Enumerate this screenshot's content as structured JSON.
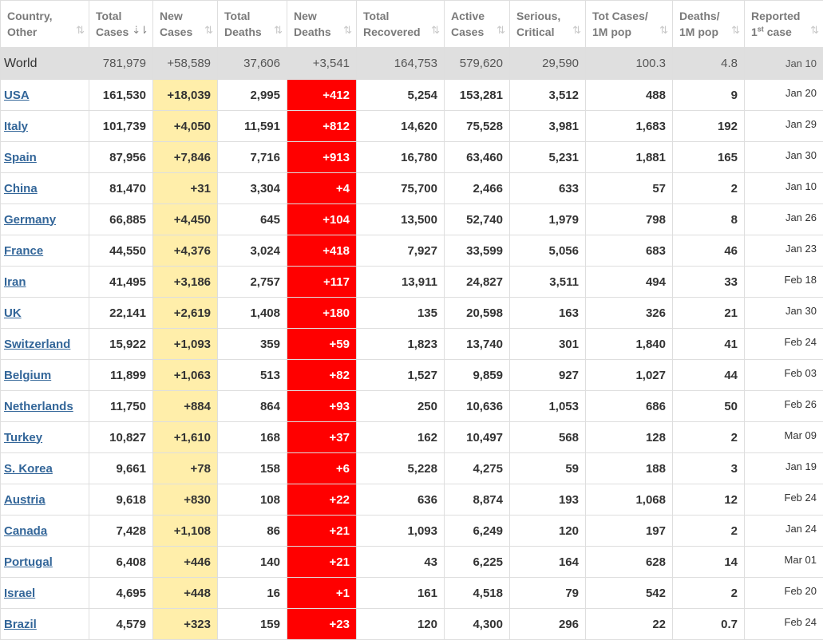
{
  "headers": [
    {
      "line1": "Country,",
      "line2": "Other",
      "sup": "",
      "line2b": ""
    },
    {
      "line1": "Total",
      "line2": "Cases",
      "sup": "",
      "line2b": ""
    },
    {
      "line1": "New",
      "line2": "Cases",
      "sup": "",
      "line2b": ""
    },
    {
      "line1": "Total",
      "line2": "Deaths",
      "sup": "",
      "line2b": ""
    },
    {
      "line1": "New",
      "line2": "Deaths",
      "sup": "",
      "line2b": ""
    },
    {
      "line1": "Total",
      "line2": "Recovered",
      "sup": "",
      "line2b": ""
    },
    {
      "line1": "Active",
      "line2": "Cases",
      "sup": "",
      "line2b": ""
    },
    {
      "line1": "Serious,",
      "line2": "Critical",
      "sup": "",
      "line2b": ""
    },
    {
      "line1": "Tot Cases/",
      "line2": "1M pop",
      "sup": "",
      "line2b": ""
    },
    {
      "line1": "Deaths/",
      "line2": "1M pop",
      "sup": "",
      "line2b": ""
    },
    {
      "line1": "Reported",
      "line2": "1",
      "sup": "st",
      "line2b": " case"
    }
  ],
  "sort_icons": {
    "inactive": "⇅",
    "active": "⇣⇂"
  },
  "active_sort_column": 1,
  "world": {
    "country": "World",
    "total_cases": "781,979",
    "new_cases": "+58,589",
    "total_deaths": "37,606",
    "new_deaths": "+3,541",
    "total_recovered": "164,753",
    "active_cases": "579,620",
    "serious": "29,590",
    "cases_per_1m": "100.3",
    "deaths_per_1m": "4.8",
    "reported": "Jan 10"
  },
  "rows": [
    {
      "country": "USA",
      "total_cases": "161,530",
      "new_cases": "+18,039",
      "total_deaths": "2,995",
      "new_deaths": "+412",
      "total_recovered": "5,254",
      "active_cases": "153,281",
      "serious": "3,512",
      "cases_per_1m": "488",
      "deaths_per_1m": "9",
      "reported": "Jan 20"
    },
    {
      "country": "Italy",
      "total_cases": "101,739",
      "new_cases": "+4,050",
      "total_deaths": "11,591",
      "new_deaths": "+812",
      "total_recovered": "14,620",
      "active_cases": "75,528",
      "serious": "3,981",
      "cases_per_1m": "1,683",
      "deaths_per_1m": "192",
      "reported": "Jan 29"
    },
    {
      "country": "Spain",
      "total_cases": "87,956",
      "new_cases": "+7,846",
      "total_deaths": "7,716",
      "new_deaths": "+913",
      "total_recovered": "16,780",
      "active_cases": "63,460",
      "serious": "5,231",
      "cases_per_1m": "1,881",
      "deaths_per_1m": "165",
      "reported": "Jan 30"
    },
    {
      "country": "China",
      "total_cases": "81,470",
      "new_cases": "+31",
      "total_deaths": "3,304",
      "new_deaths": "+4",
      "total_recovered": "75,700",
      "active_cases": "2,466",
      "serious": "633",
      "cases_per_1m": "57",
      "deaths_per_1m": "2",
      "reported": "Jan 10"
    },
    {
      "country": "Germany",
      "total_cases": "66,885",
      "new_cases": "+4,450",
      "total_deaths": "645",
      "new_deaths": "+104",
      "total_recovered": "13,500",
      "active_cases": "52,740",
      "serious": "1,979",
      "cases_per_1m": "798",
      "deaths_per_1m": "8",
      "reported": "Jan 26"
    },
    {
      "country": "France",
      "total_cases": "44,550",
      "new_cases": "+4,376",
      "total_deaths": "3,024",
      "new_deaths": "+418",
      "total_recovered": "7,927",
      "active_cases": "33,599",
      "serious": "5,056",
      "cases_per_1m": "683",
      "deaths_per_1m": "46",
      "reported": "Jan 23"
    },
    {
      "country": "Iran",
      "total_cases": "41,495",
      "new_cases": "+3,186",
      "total_deaths": "2,757",
      "new_deaths": "+117",
      "total_recovered": "13,911",
      "active_cases": "24,827",
      "serious": "3,511",
      "cases_per_1m": "494",
      "deaths_per_1m": "33",
      "reported": "Feb 18"
    },
    {
      "country": "UK",
      "total_cases": "22,141",
      "new_cases": "+2,619",
      "total_deaths": "1,408",
      "new_deaths": "+180",
      "total_recovered": "135",
      "active_cases": "20,598",
      "serious": "163",
      "cases_per_1m": "326",
      "deaths_per_1m": "21",
      "reported": "Jan 30"
    },
    {
      "country": "Switzerland",
      "total_cases": "15,922",
      "new_cases": "+1,093",
      "total_deaths": "359",
      "new_deaths": "+59",
      "total_recovered": "1,823",
      "active_cases": "13,740",
      "serious": "301",
      "cases_per_1m": "1,840",
      "deaths_per_1m": "41",
      "reported": "Feb 24"
    },
    {
      "country": "Belgium",
      "total_cases": "11,899",
      "new_cases": "+1,063",
      "total_deaths": "513",
      "new_deaths": "+82",
      "total_recovered": "1,527",
      "active_cases": "9,859",
      "serious": "927",
      "cases_per_1m": "1,027",
      "deaths_per_1m": "44",
      "reported": "Feb 03"
    },
    {
      "country": "Netherlands",
      "total_cases": "11,750",
      "new_cases": "+884",
      "total_deaths": "864",
      "new_deaths": "+93",
      "total_recovered": "250",
      "active_cases": "10,636",
      "serious": "1,053",
      "cases_per_1m": "686",
      "deaths_per_1m": "50",
      "reported": "Feb 26"
    },
    {
      "country": "Turkey",
      "total_cases": "10,827",
      "new_cases": "+1,610",
      "total_deaths": "168",
      "new_deaths": "+37",
      "total_recovered": "162",
      "active_cases": "10,497",
      "serious": "568",
      "cases_per_1m": "128",
      "deaths_per_1m": "2",
      "reported": "Mar 09"
    },
    {
      "country": "S. Korea",
      "total_cases": "9,661",
      "new_cases": "+78",
      "total_deaths": "158",
      "new_deaths": "+6",
      "total_recovered": "5,228",
      "active_cases": "4,275",
      "serious": "59",
      "cases_per_1m": "188",
      "deaths_per_1m": "3",
      "reported": "Jan 19"
    },
    {
      "country": "Austria",
      "total_cases": "9,618",
      "new_cases": "+830",
      "total_deaths": "108",
      "new_deaths": "+22",
      "total_recovered": "636",
      "active_cases": "8,874",
      "serious": "193",
      "cases_per_1m": "1,068",
      "deaths_per_1m": "12",
      "reported": "Feb 24"
    },
    {
      "country": "Canada",
      "total_cases": "7,428",
      "new_cases": "+1,108",
      "total_deaths": "86",
      "new_deaths": "+21",
      "total_recovered": "1,093",
      "active_cases": "6,249",
      "serious": "120",
      "cases_per_1m": "197",
      "deaths_per_1m": "2",
      "reported": "Jan 24"
    },
    {
      "country": "Portugal",
      "total_cases": "6,408",
      "new_cases": "+446",
      "total_deaths": "140",
      "new_deaths": "+21",
      "total_recovered": "43",
      "active_cases": "6,225",
      "serious": "164",
      "cases_per_1m": "628",
      "deaths_per_1m": "14",
      "reported": "Mar 01"
    },
    {
      "country": "Israel",
      "total_cases": "4,695",
      "new_cases": "+448",
      "total_deaths": "16",
      "new_deaths": "+1",
      "total_recovered": "161",
      "active_cases": "4,518",
      "serious": "79",
      "cases_per_1m": "542",
      "deaths_per_1m": "2",
      "reported": "Feb 20"
    },
    {
      "country": "Brazil",
      "total_cases": "4,579",
      "new_cases": "+323",
      "total_deaths": "159",
      "new_deaths": "+23",
      "total_recovered": "120",
      "active_cases": "4,300",
      "serious": "296",
      "cases_per_1m": "22",
      "deaths_per_1m": "0.7",
      "reported": "Feb 24"
    }
  ],
  "colors": {
    "link": "#336699",
    "new_cases_bg": "#ffeeaa",
    "new_deaths_bg": "#ff0000",
    "world_row_bg": "#dfdfdf"
  }
}
